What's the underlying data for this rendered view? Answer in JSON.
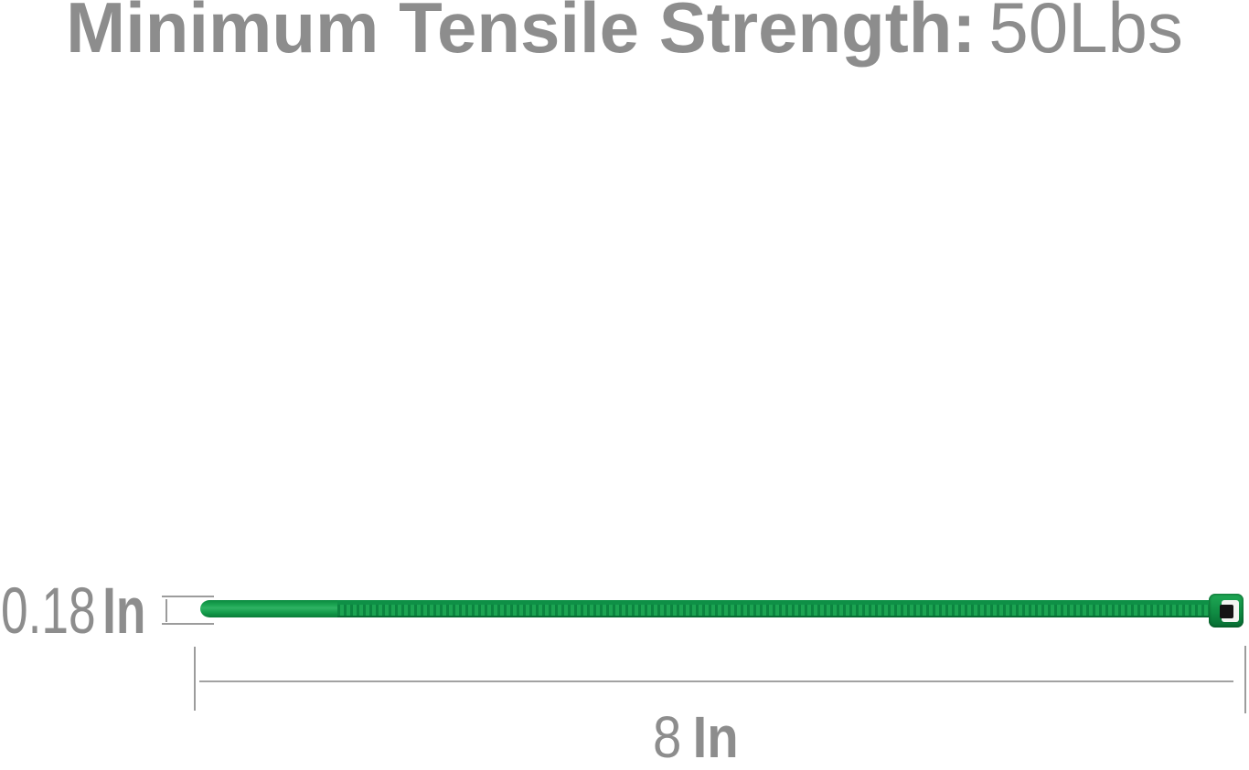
{
  "header": {
    "title_label": "Minimum Tensile Strength:",
    "title_value": "50Lbs"
  },
  "diagram": {
    "product": "green nylon cable zip tie",
    "thickness": {
      "value": "0.18",
      "unit": "In"
    },
    "length": {
      "value": "8",
      "unit": "In"
    }
  },
  "colors": {
    "text_gray": "#8d8d8d",
    "line_gray": "#9c9c9c",
    "tie_green": "#149c4b",
    "tie_green_dark": "#0c8440",
    "tie_green_darker": "#076b32",
    "tie_green_light": "#1ca452",
    "tie_green_highlight": "#2fb364",
    "slot_white": "#f2f6f2",
    "pawl_black": "#141414"
  }
}
